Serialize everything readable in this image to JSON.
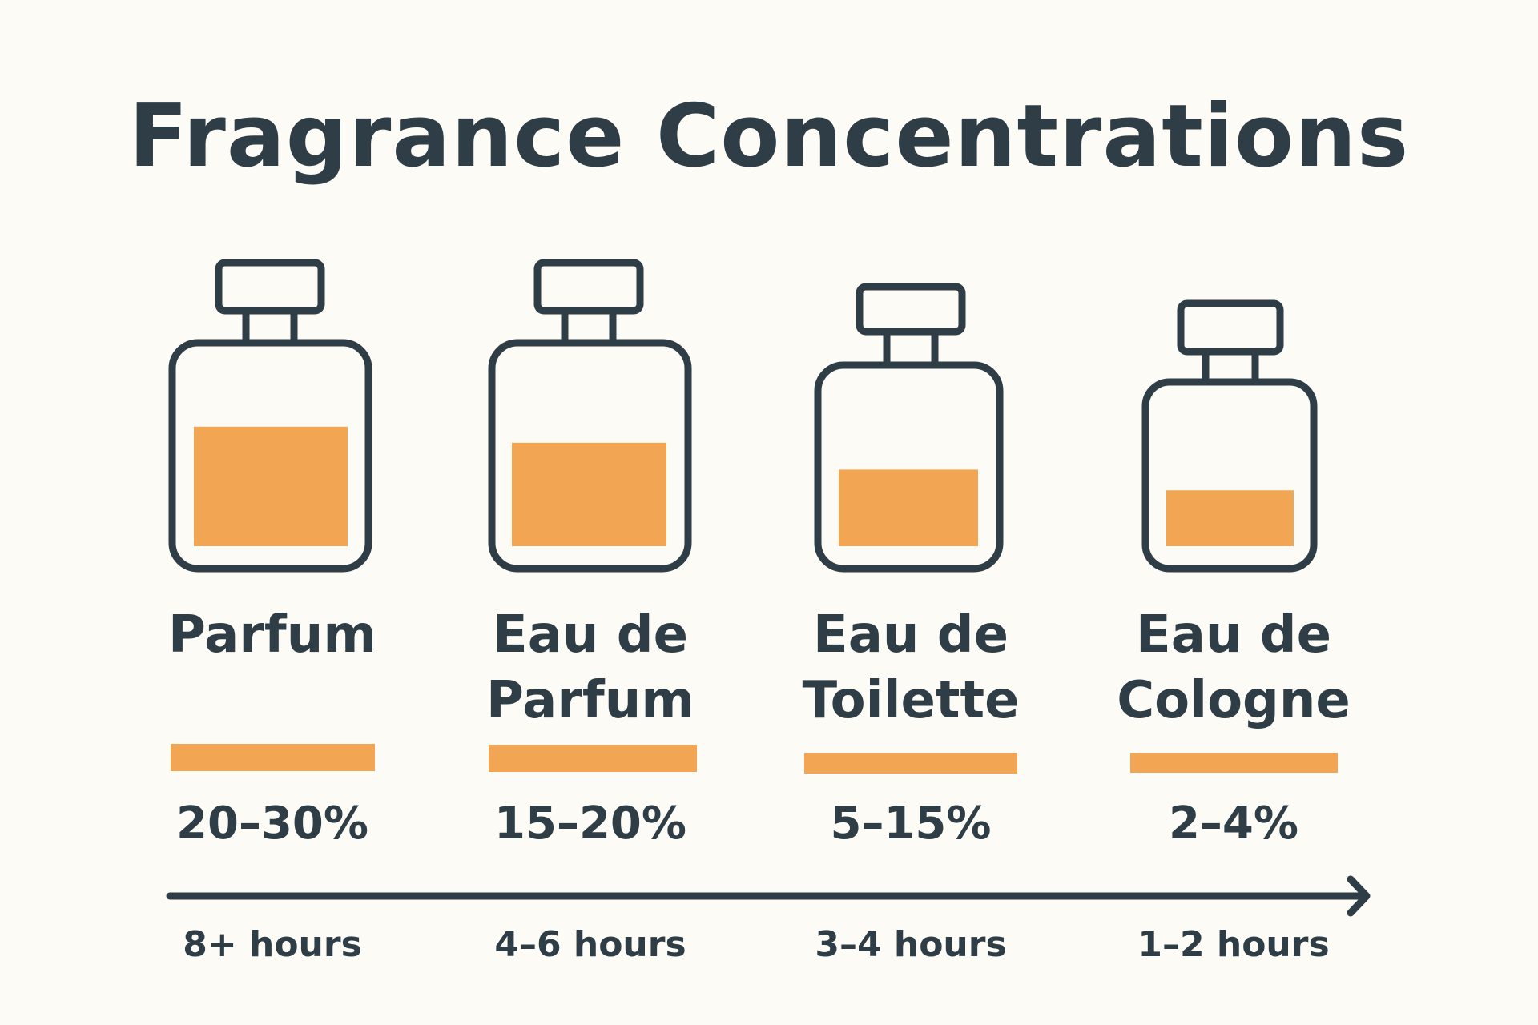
{
  "title": "Fragrance Concentrations",
  "colors": {
    "background": "#fcfbf5",
    "outline": "#2f3e46",
    "fill": "#f2a653"
  },
  "items": [
    {
      "name_line1": "Parfum",
      "name_line2": "",
      "concentration": "20–30%",
      "longevity": "8+ hours",
      "liquid_level": 0.67
    },
    {
      "name_line1": "Eau de",
      "name_line2": "Parfum",
      "concentration": "15–20%",
      "longevity": "4–6 hours",
      "liquid_level": 0.58
    },
    {
      "name_line1": "Eau de",
      "name_line2": "Toilette",
      "concentration": "5–15%",
      "longevity": "3–4 hours",
      "liquid_level": 0.49
    },
    {
      "name_line1": "Eau de",
      "name_line2": "Cologne",
      "concentration": "2–4%",
      "longevity": "1–2 hours",
      "liquid_level": 0.4
    }
  ]
}
